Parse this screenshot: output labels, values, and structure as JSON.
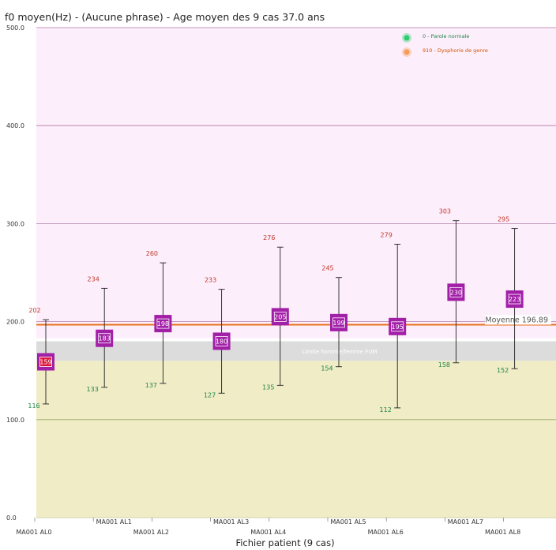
{
  "chart_data": {
    "type": "box",
    "title": "f0 moyen(Hz) - (Aucune phrase) - Age moyen des 9 cas 37.0 ans",
    "xlabel": "Fichier patient (9 cas)",
    "ylim": [
      0,
      500
    ],
    "yticks": [
      "0.0",
      "100.0",
      "200.0",
      "300.0",
      "400.0",
      "500.0"
    ],
    "categories": [
      "MA001 AL0",
      "MA001 AL1",
      "MA001 AL2",
      "MA001 AL3",
      "MA001 AL4",
      "MA001 AL5",
      "MA001 AL6",
      "MA001 AL7",
      "MA001 AL8"
    ],
    "mean": [
      159,
      183,
      198,
      180,
      205,
      199,
      195,
      230,
      223
    ],
    "max": [
      202,
      234,
      260,
      233,
      276,
      245,
      279,
      303,
      295
    ],
    "min": [
      116,
      133,
      137,
      127,
      135,
      154,
      112,
      158,
      152
    ],
    "average_line": {
      "label": "Moyenne 196.89",
      "value": 196.89,
      "color": "#e8701a"
    },
    "bands": [
      {
        "label": "",
        "from": 183,
        "to": 500,
        "color": "#fdeefb"
      },
      {
        "label": "Limite homme/femme FUM",
        "from": 160,
        "to": 180,
        "color": "#dcdcdc"
      },
      {
        "label": "",
        "from": 0,
        "to": 160,
        "color": "#efecc6"
      }
    ],
    "legend": [
      {
        "label": "0 -  Parole normale",
        "color": "#2ecc71"
      },
      {
        "label": "910 -   Dysphorie de genre",
        "color": "#f39c5a"
      }
    ],
    "legend_position": "top-right",
    "box_color": "#a21fa8",
    "highlight_color": "#e0183c"
  }
}
